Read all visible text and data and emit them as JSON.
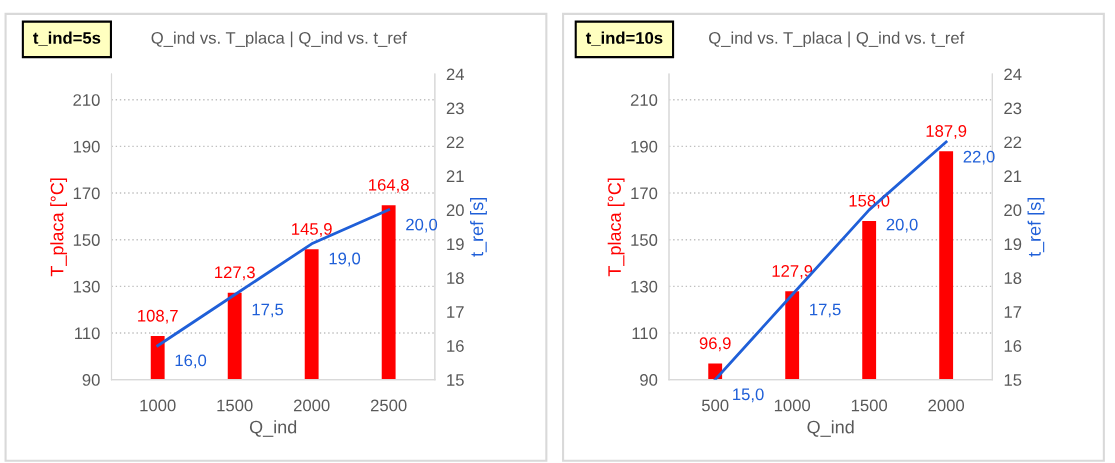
{
  "chart_data": [
    {
      "type": "bar",
      "title": "Q_ind vs. T_placa | Q_ind vs. t_ref",
      "annotations": [
        "t_ind=5s"
      ],
      "xlabel": "Q_ind",
      "ylabel": "T_placa [°C]",
      "y2label": "t_ref [s]",
      "categories": [
        "1000",
        "1500",
        "2000",
        "2500"
      ],
      "series": [
        {
          "name": null,
          "color": "#ff0000",
          "values": [
            108.7,
            127.3,
            145.9,
            164.8
          ],
          "value_labels": [
            "108,7",
            "127,3",
            "145,9",
            "164,8"
          ]
        },
        {
          "name": null,
          "type": "line",
          "axis": "y2",
          "color": "#1f5fd8",
          "values": [
            16.0,
            17.5,
            19.0,
            20.0
          ],
          "value_labels": [
            "16,0",
            "17,5",
            "19,0",
            "20,0"
          ]
        }
      ],
      "ylim": [
        90,
        221
      ],
      "yticks": [
        90,
        110,
        130,
        150,
        170,
        190,
        210
      ],
      "y2lim": [
        15,
        24
      ],
      "y2ticks": [
        15,
        16,
        17,
        18,
        19,
        20,
        21,
        22,
        23,
        24
      ],
      "grid": "y"
    },
    {
      "type": "bar",
      "title": "Q_ind vs. T_placa | Q_ind vs. t_ref",
      "annotations": [
        "t_ind=10s"
      ],
      "xlabel": "Q_ind",
      "ylabel": "T_placa [°C]",
      "y2label": "t_ref [s]",
      "categories": [
        "500",
        "1000",
        "1500",
        "2000"
      ],
      "series": [
        {
          "name": null,
          "color": "#ff0000",
          "values": [
            96.9,
            127.9,
            158.0,
            187.9
          ],
          "value_labels": [
            "96,9",
            "127,9",
            "158,0",
            "187,9"
          ]
        },
        {
          "name": null,
          "type": "line",
          "axis": "y2",
          "color": "#1f5fd8",
          "values": [
            15.0,
            17.5,
            20.0,
            22.0
          ],
          "value_labels": [
            "15,0",
            "17,5",
            "20,0",
            "22,0"
          ]
        }
      ],
      "ylim": [
        90,
        221
      ],
      "yticks": [
        90,
        110,
        130,
        150,
        170,
        190,
        210
      ],
      "y2lim": [
        15,
        24
      ],
      "y2ticks": [
        15,
        16,
        17,
        18,
        19,
        20,
        21,
        22,
        23,
        24
      ],
      "grid": "y"
    }
  ]
}
